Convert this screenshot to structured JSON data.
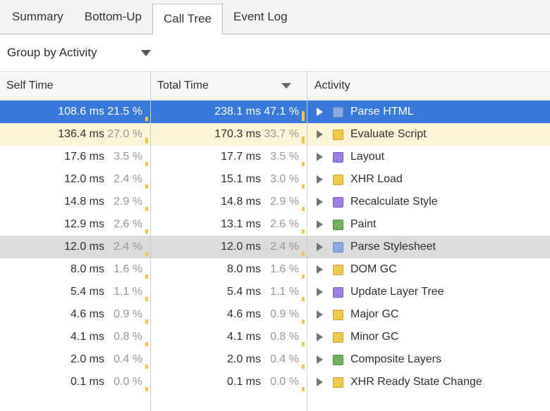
{
  "tabs": [
    {
      "label": "Summary",
      "selected": false
    },
    {
      "label": "Bottom-Up",
      "selected": false
    },
    {
      "label": "Call Tree",
      "selected": true
    },
    {
      "label": "Event Log",
      "selected": false
    }
  ],
  "toolbar": {
    "group_by": "Group by Activity"
  },
  "table": {
    "headers": {
      "self_time": "Self Time",
      "total_time": "Total Time",
      "activity": "Activity"
    },
    "sort": {
      "column": "Total Time",
      "direction": "descending"
    }
  },
  "colors": {
    "selection": "#3879D9",
    "highlight_yellow": "#FCF4D6",
    "highlight_gray": "#DBDBDB",
    "pct_bar": "#EDC64A"
  },
  "rows": [
    {
      "self_ms": "108.6 ms",
      "self_pct": "21.5 %",
      "total_ms": "238.1 ms",
      "total_pct": "47.1 %",
      "activity": "Parse HTML",
      "category": "loading",
      "icon_color": "#8FA8DF",
      "icon_border": "#6B8CC9",
      "state": "selected"
    },
    {
      "self_ms": "136.4 ms",
      "self_pct": "27.0 %",
      "total_ms": "170.3 ms",
      "total_pct": "33.7 %",
      "activity": "Evaluate Script",
      "category": "scripting",
      "icon_color": "#EFC94C",
      "icon_border": "#C7A231",
      "state": "hl-yellow"
    },
    {
      "self_ms": "17.6 ms",
      "self_pct": "3.5 %",
      "total_ms": "17.7 ms",
      "total_pct": "3.5 %",
      "activity": "Layout",
      "category": "rendering",
      "icon_color": "#9D7EE2",
      "icon_border": "#7E5EC5",
      "state": ""
    },
    {
      "self_ms": "12.0 ms",
      "self_pct": "2.4 %",
      "total_ms": "15.1 ms",
      "total_pct": "3.0 %",
      "activity": "XHR Load",
      "category": "scripting",
      "icon_color": "#EFC94C",
      "icon_border": "#C7A231",
      "state": ""
    },
    {
      "self_ms": "14.8 ms",
      "self_pct": "2.9 %",
      "total_ms": "14.8 ms",
      "total_pct": "2.9 %",
      "activity": "Recalculate Style",
      "category": "rendering",
      "icon_color": "#9D7EE2",
      "icon_border": "#7E5EC5",
      "state": ""
    },
    {
      "self_ms": "12.9 ms",
      "self_pct": "2.6 %",
      "total_ms": "13.1 ms",
      "total_pct": "2.6 %",
      "activity": "Paint",
      "category": "painting",
      "icon_color": "#6FB15E",
      "icon_border": "#548F44",
      "state": ""
    },
    {
      "self_ms": "12.0 ms",
      "self_pct": "2.4 %",
      "total_ms": "12.0 ms",
      "total_pct": "2.4 %",
      "activity": "Parse Stylesheet",
      "category": "loading",
      "icon_color": "#8FA8DF",
      "icon_border": "#6B8CC9",
      "state": "hl-gray"
    },
    {
      "self_ms": "8.0 ms",
      "self_pct": "1.6 %",
      "total_ms": "8.0 ms",
      "total_pct": "1.6 %",
      "activity": "DOM GC",
      "category": "scripting",
      "icon_color": "#EFC94C",
      "icon_border": "#C7A231",
      "state": ""
    },
    {
      "self_ms": "5.4 ms",
      "self_pct": "1.1 %",
      "total_ms": "5.4 ms",
      "total_pct": "1.1 %",
      "activity": "Update Layer Tree",
      "category": "rendering",
      "icon_color": "#9D7EE2",
      "icon_border": "#7E5EC5",
      "state": ""
    },
    {
      "self_ms": "4.6 ms",
      "self_pct": "0.9 %",
      "total_ms": "4.6 ms",
      "total_pct": "0.9 %",
      "activity": "Major GC",
      "category": "scripting",
      "icon_color": "#EFC94C",
      "icon_border": "#C7A231",
      "state": ""
    },
    {
      "self_ms": "4.1 ms",
      "self_pct": "0.8 %",
      "total_ms": "4.1 ms",
      "total_pct": "0.8 %",
      "activity": "Minor GC",
      "category": "scripting",
      "icon_color": "#EFC94C",
      "icon_border": "#C7A231",
      "state": ""
    },
    {
      "self_ms": "2.0 ms",
      "self_pct": "0.4 %",
      "total_ms": "2.0 ms",
      "total_pct": "0.4 %",
      "activity": "Composite Layers",
      "category": "painting",
      "icon_color": "#6FB15E",
      "icon_border": "#548F44",
      "state": ""
    },
    {
      "self_ms": "0.1 ms",
      "self_pct": "0.0 %",
      "total_ms": "0.1 ms",
      "total_pct": "0.0 %",
      "activity": "XHR Ready State Change",
      "category": "scripting",
      "icon_color": "#EFC94C",
      "icon_border": "#C7A231",
      "state": ""
    }
  ]
}
